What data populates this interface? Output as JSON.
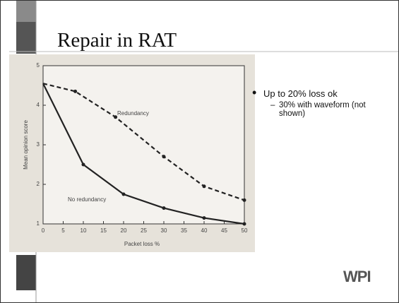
{
  "slide": {
    "title": "Repair in RAT",
    "bullets": [
      {
        "text": "Up to 20% loss ok",
        "sub": [
          "30% with waveform (not shown)"
        ]
      }
    ],
    "logo": "WPI"
  },
  "chart_data": {
    "type": "line",
    "x_label": "Packet loss %",
    "y_label": "Mean opinion score",
    "xlim": [
      0,
      50
    ],
    "xticks": [
      0,
      5,
      10,
      15,
      20,
      25,
      30,
      35,
      40,
      45,
      50
    ],
    "ylim": [
      1,
      5
    ],
    "yticks": [
      1,
      2,
      3,
      4,
      5
    ],
    "series": [
      {
        "name": "Redundancy",
        "color": "#222222",
        "style": "dashed",
        "x": [
          0,
          8,
          18,
          30,
          40,
          50
        ],
        "values": [
          4.55,
          4.35,
          3.7,
          2.7,
          1.95,
          1.6
        ]
      },
      {
        "name": "No redundancy",
        "color": "#222222",
        "style": "solid",
        "x": [
          0,
          10,
          20,
          30,
          40,
          50
        ],
        "values": [
          4.55,
          2.5,
          1.75,
          1.4,
          1.15,
          1.0
        ]
      }
    ]
  }
}
